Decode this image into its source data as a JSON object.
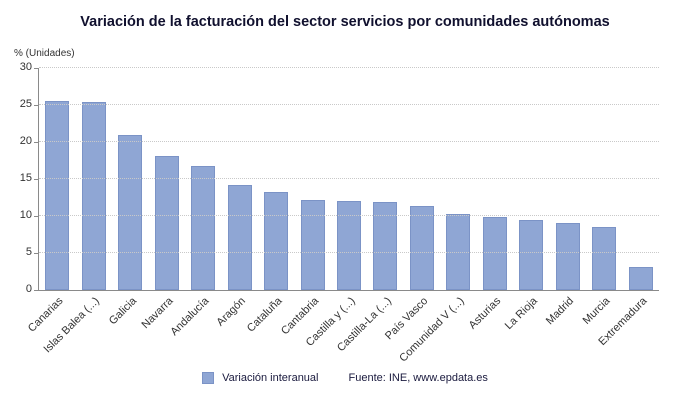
{
  "title": "Variación de la facturación del sector servicios por comunidades autónomas",
  "chart_data": {
    "type": "bar",
    "title": "Variación de la facturación del sector servicios por comunidades autónomas",
    "unit_label": "% (Unidades)",
    "xlabel": "",
    "ylabel": "% (Unidades)",
    "ylim": [
      0,
      30
    ],
    "ytick_step": 5,
    "grid": true,
    "legend_position": "bottom",
    "bar_color": "#8fa6d4",
    "bar_border_color": "#7b93c6",
    "categories": [
      "Canarias",
      "Islas Balea (...)",
      "Galicia",
      "Navarra",
      "Andalucía",
      "Aragón",
      "Cataluña",
      "Cantabria",
      "Castilla y (...)",
      "Castilla-La (...)",
      "País Vasco",
      "Comunidad V (...)",
      "Asturias",
      "La Rioja",
      "Madrid",
      "Murcia",
      "Extremadura"
    ],
    "values": [
      25.5,
      25.4,
      21.0,
      18.1,
      16.8,
      14.2,
      13.2,
      12.2,
      12.0,
      11.9,
      11.4,
      10.3,
      9.8,
      9.4,
      9.1,
      8.5,
      3.1
    ]
  },
  "legend": {
    "label": "Variación interanual"
  },
  "source": "Fuente: INE, www.epdata.es"
}
